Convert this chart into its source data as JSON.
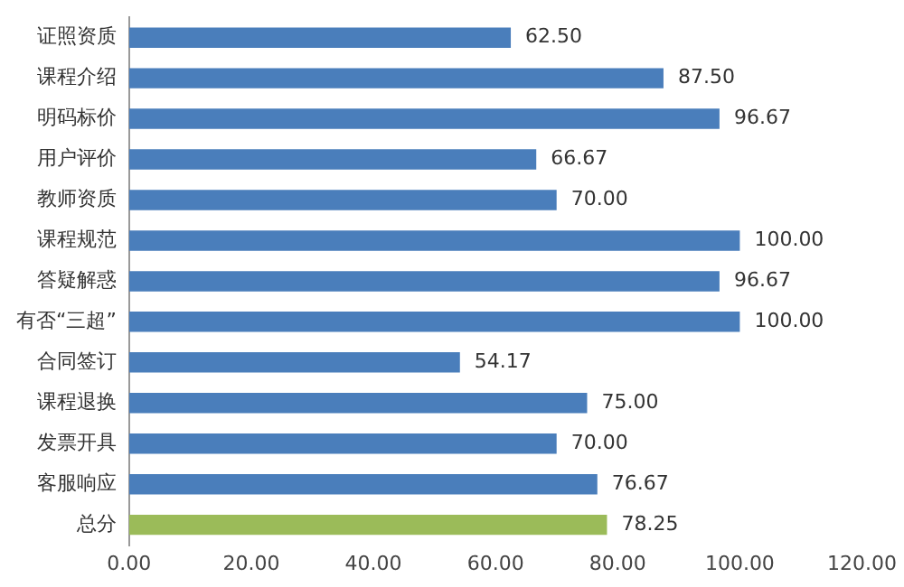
{
  "chart_data": {
    "type": "bar",
    "orientation": "horizontal",
    "categories": [
      "证照资质",
      "课程介绍",
      "明码标价",
      "用户评价",
      "教师资质",
      "课程规范",
      "答疑解惑",
      "有否“三超”",
      "合同签订",
      "课程退换",
      "发票开具",
      "客服响应",
      "总分"
    ],
    "values": [
      62.5,
      87.5,
      96.67,
      66.67,
      70,
      100,
      96.67,
      100,
      54.17,
      75,
      70,
      76.67,
      78.25
    ],
    "value_labels": [
      "62.50",
      "87.50",
      "96.67",
      "66.67",
      "70.00",
      "100.00",
      "96.67",
      "100.00",
      "54.17",
      "75.00",
      "70.00",
      "76.67",
      "78.25"
    ],
    "colors": [
      "#4a7ebb",
      "#4a7ebb",
      "#4a7ebb",
      "#4a7ebb",
      "#4a7ebb",
      "#4a7ebb",
      "#4a7ebb",
      "#4a7ebb",
      "#4a7ebb",
      "#4a7ebb",
      "#4a7ebb",
      "#4a7ebb",
      "#9bbb59"
    ],
    "xlim": [
      0,
      120
    ],
    "xticks": [
      {
        "value": 0,
        "label": "0.00"
      },
      {
        "value": 20,
        "label": "20.00"
      },
      {
        "value": 40,
        "label": "40.00"
      },
      {
        "value": 60,
        "label": "60.00"
      },
      {
        "value": 80,
        "label": "80.00"
      },
      {
        "value": 100,
        "label": "100.00"
      },
      {
        "value": 120,
        "label": "120.00"
      }
    ],
    "grid": false,
    "legend": false
  }
}
